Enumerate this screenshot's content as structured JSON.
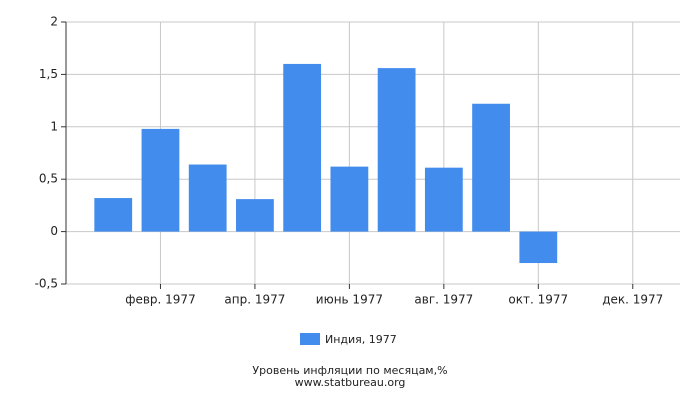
{
  "chart_data": {
    "type": "bar",
    "title": "Уровень инфляции по месяцам,%",
    "source": "www.statbureau.org",
    "categories": [
      null,
      "февр. 1977",
      null,
      "апр. 1977",
      null,
      "июнь 1977",
      null,
      "авг. 1977",
      null,
      "окт. 1977",
      null,
      "дек. 1977"
    ],
    "series": [
      {
        "name": "Индия, 1977",
        "color": "#418ced",
        "values": [
          0.32,
          0.98,
          0.64,
          0.31,
          1.6,
          0.62,
          1.56,
          0.61,
          1.22,
          -0.3,
          null,
          null
        ]
      }
    ],
    "ylim": [
      -0.5,
      2
    ],
    "yticks": [
      {
        "value": -0.5,
        "label": "-0,5"
      },
      0,
      {
        "value": 0.5,
        "label": "0,5"
      },
      1,
      {
        "value": 1.5,
        "label": "1,5"
      },
      2
    ],
    "grid": true
  }
}
